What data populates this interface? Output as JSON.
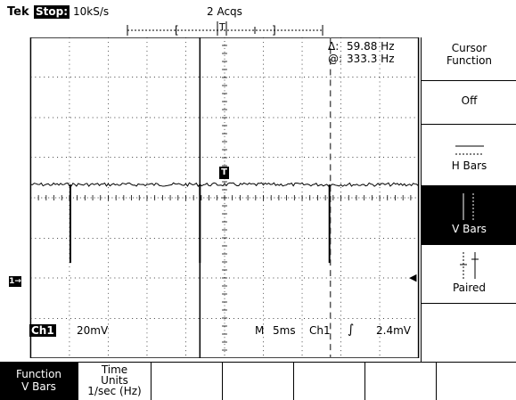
{
  "header": {
    "brand": "Tek",
    "state": "Stop:",
    "sample_rate": "10kS/s",
    "acqs": "2 Acqs",
    "trig_marker": "T"
  },
  "cursor_readout": {
    "delta_symbol": "Δ:",
    "delta_value": "59.88 Hz",
    "at_symbol": "@:",
    "at_value": "333.3 Hz"
  },
  "status": {
    "channel": "Ch1",
    "volts": "20mV",
    "mode": "M",
    "timebase": "5ms",
    "trig_ch": "Ch1",
    "trig_slope": "∫",
    "trig_level": "2.4mV"
  },
  "markers": {
    "trigger": "T",
    "channel1": "1→"
  },
  "side_menu": {
    "title_line1": "Cursor",
    "title_line2": "Function",
    "off": "Off",
    "hbars": "H Bars",
    "vbars": "V Bars",
    "paired": "Paired"
  },
  "bottom_menu": {
    "function_label": "Function",
    "function_value": "V Bars",
    "time_units_line1": "Time",
    "time_units_line2": "Units",
    "time_units_line3": "1/sec (Hz)"
  }
}
